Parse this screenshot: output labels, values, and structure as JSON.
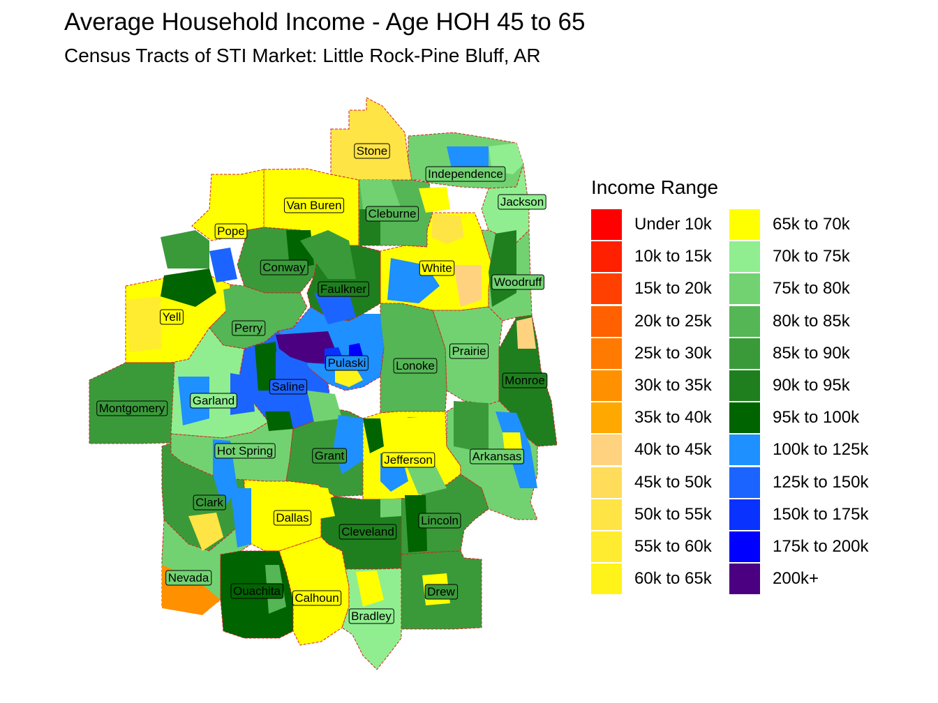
{
  "title": "Average Household Income - Age HOH 45 to 65",
  "subtitle": "Census Tracts of STI Market: Little Rock-Pine Bluff, AR",
  "legend": {
    "title": "Income Range",
    "items": [
      {
        "label": "Under 10k",
        "color": "#ff0000"
      },
      {
        "label": "10k to 15k",
        "color": "#ff2000"
      },
      {
        "label": "15k to 20k",
        "color": "#ff4000"
      },
      {
        "label": "20k to 25k",
        "color": "#ff6000"
      },
      {
        "label": "25k to 30k",
        "color": "#ff7a00"
      },
      {
        "label": "30k to 35k",
        "color": "#ff9000"
      },
      {
        "label": "35k to 40k",
        "color": "#ffa800"
      },
      {
        "label": "40k to 45k",
        "color": "#ffd27f"
      },
      {
        "label": "45k to 50k",
        "color": "#ffdc5a"
      },
      {
        "label": "50k to 55k",
        "color": "#ffe445"
      },
      {
        "label": "55k to 60k",
        "color": "#ffec30"
      },
      {
        "label": "60k to 65k",
        "color": "#fff31a"
      },
      {
        "label": "65k to 70k",
        "color": "#ffff00"
      },
      {
        "label": "70k to 75k",
        "color": "#90ee90"
      },
      {
        "label": "75k to 80k",
        "color": "#72d272"
      },
      {
        "label": "80k to 85k",
        "color": "#55b655"
      },
      {
        "label": "85k to 90k",
        "color": "#3a9a3a"
      },
      {
        "label": "90k to 95k",
        "color": "#1f7f1f"
      },
      {
        "label": "95k to 100k",
        "color": "#006400"
      },
      {
        "label": "100k to 125k",
        "color": "#1e90ff"
      },
      {
        "label": "125k to 150k",
        "color": "#1c64ff"
      },
      {
        "label": "150k to 175k",
        "color": "#0a32ff"
      },
      {
        "label": "175k to 200k",
        "color": "#0000ff"
      },
      {
        "label": "200k+",
        "color": "#4b0082"
      }
    ]
  },
  "counties": [
    {
      "name": "Stone",
      "color": "#ffe445"
    },
    {
      "name": "Independence",
      "color": "#72d272"
    },
    {
      "name": "Van Buren",
      "color": "#ffff00"
    },
    {
      "name": "Cleburne",
      "color": "#55b655"
    },
    {
      "name": "Jackson",
      "color": "#90ee90"
    },
    {
      "name": "Pope",
      "color": "#ffff00"
    },
    {
      "name": "Conway",
      "color": "#3a9a3a"
    },
    {
      "name": "White",
      "color": "#ffff00"
    },
    {
      "name": "Faulkner",
      "color": "#1f7f1f"
    },
    {
      "name": "Woodruff",
      "color": "#72d272"
    },
    {
      "name": "Yell",
      "color": "#ffff00"
    },
    {
      "name": "Perry",
      "color": "#55b655"
    },
    {
      "name": "Prairie",
      "color": "#72d272"
    },
    {
      "name": "Pulaski",
      "color": "#1e90ff"
    },
    {
      "name": "Lonoke",
      "color": "#55b655"
    },
    {
      "name": "Monroe",
      "color": "#1f7f1f"
    },
    {
      "name": "Saline",
      "color": "#1c64ff"
    },
    {
      "name": "Garland",
      "color": "#90ee90"
    },
    {
      "name": "Montgomery",
      "color": "#3a9a3a"
    },
    {
      "name": "Hot Spring",
      "color": "#72d272"
    },
    {
      "name": "Grant",
      "color": "#3a9a3a"
    },
    {
      "name": "Jefferson",
      "color": "#ffff00"
    },
    {
      "name": "Arkansas",
      "color": "#72d272"
    },
    {
      "name": "Clark",
      "color": "#3a9a3a"
    },
    {
      "name": "Dallas",
      "color": "#ffff00"
    },
    {
      "name": "Lincoln",
      "color": "#3a9a3a"
    },
    {
      "name": "Cleveland",
      "color": "#1f7f1f"
    },
    {
      "name": "Nevada",
      "color": "#72d272"
    },
    {
      "name": "Ouachita",
      "color": "#006400"
    },
    {
      "name": "Calhoun",
      "color": "#ffff00"
    },
    {
      "name": "Drew",
      "color": "#3a9a3a"
    },
    {
      "name": "Bradley",
      "color": "#90ee90"
    }
  ]
}
